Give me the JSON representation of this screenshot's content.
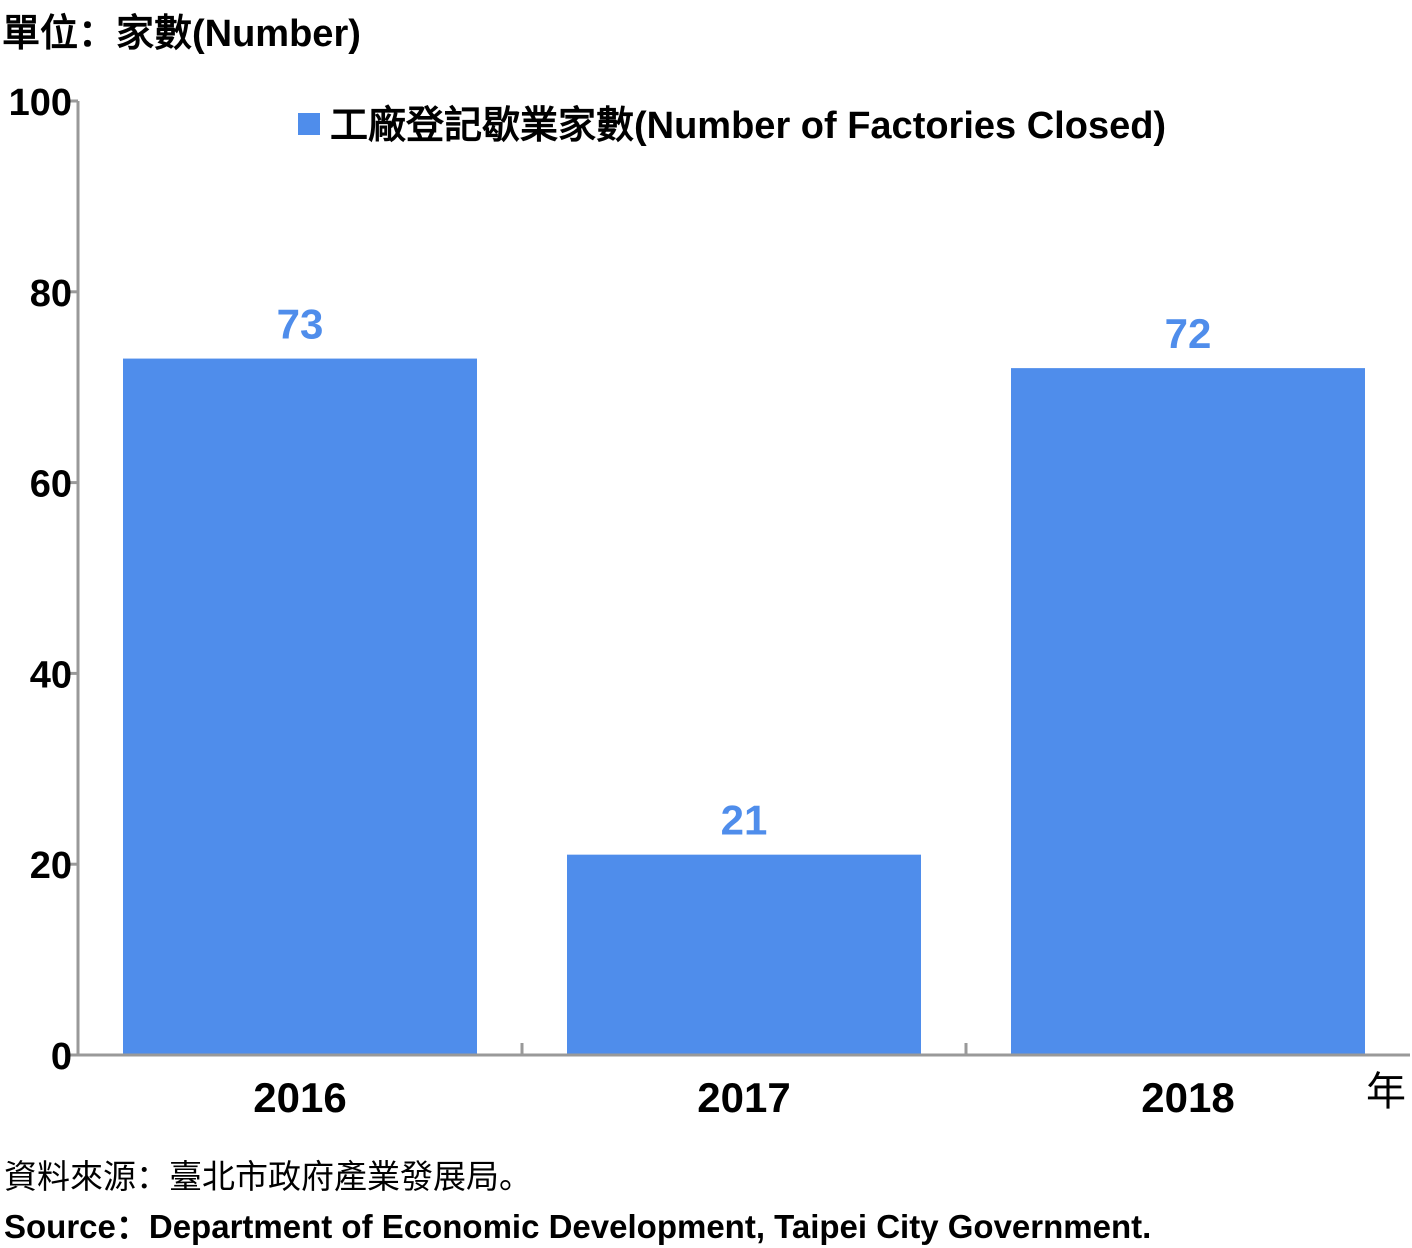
{
  "unit_label": "單位：家數(Number)",
  "source_zh": "資料來源：臺北市政府產業發展局。",
  "source_en": "Source：Department of Economic Development, Taipei City Government.",
  "colors": {
    "bar": "#4F8DEB",
    "data_label": "#4F8DEB",
    "axis": "#999999"
  },
  "chart_data": {
    "type": "bar",
    "categories": [
      "2016",
      "2017",
      "2018"
    ],
    "series": [
      {
        "name": "工廠登記歇業家數(Number of Factories Closed)",
        "values": [
          73,
          21,
          72
        ]
      }
    ],
    "data_labels": [
      "73",
      "21",
      "72"
    ],
    "xlabel": "年",
    "ylabel": "",
    "ylim": [
      0,
      100
    ],
    "yticks": [
      0,
      20,
      40,
      60,
      80,
      100
    ],
    "ytick_labels": [
      "0",
      "20",
      "40",
      "60",
      "80",
      "100"
    ],
    "grid": false,
    "legend_position": "top"
  }
}
